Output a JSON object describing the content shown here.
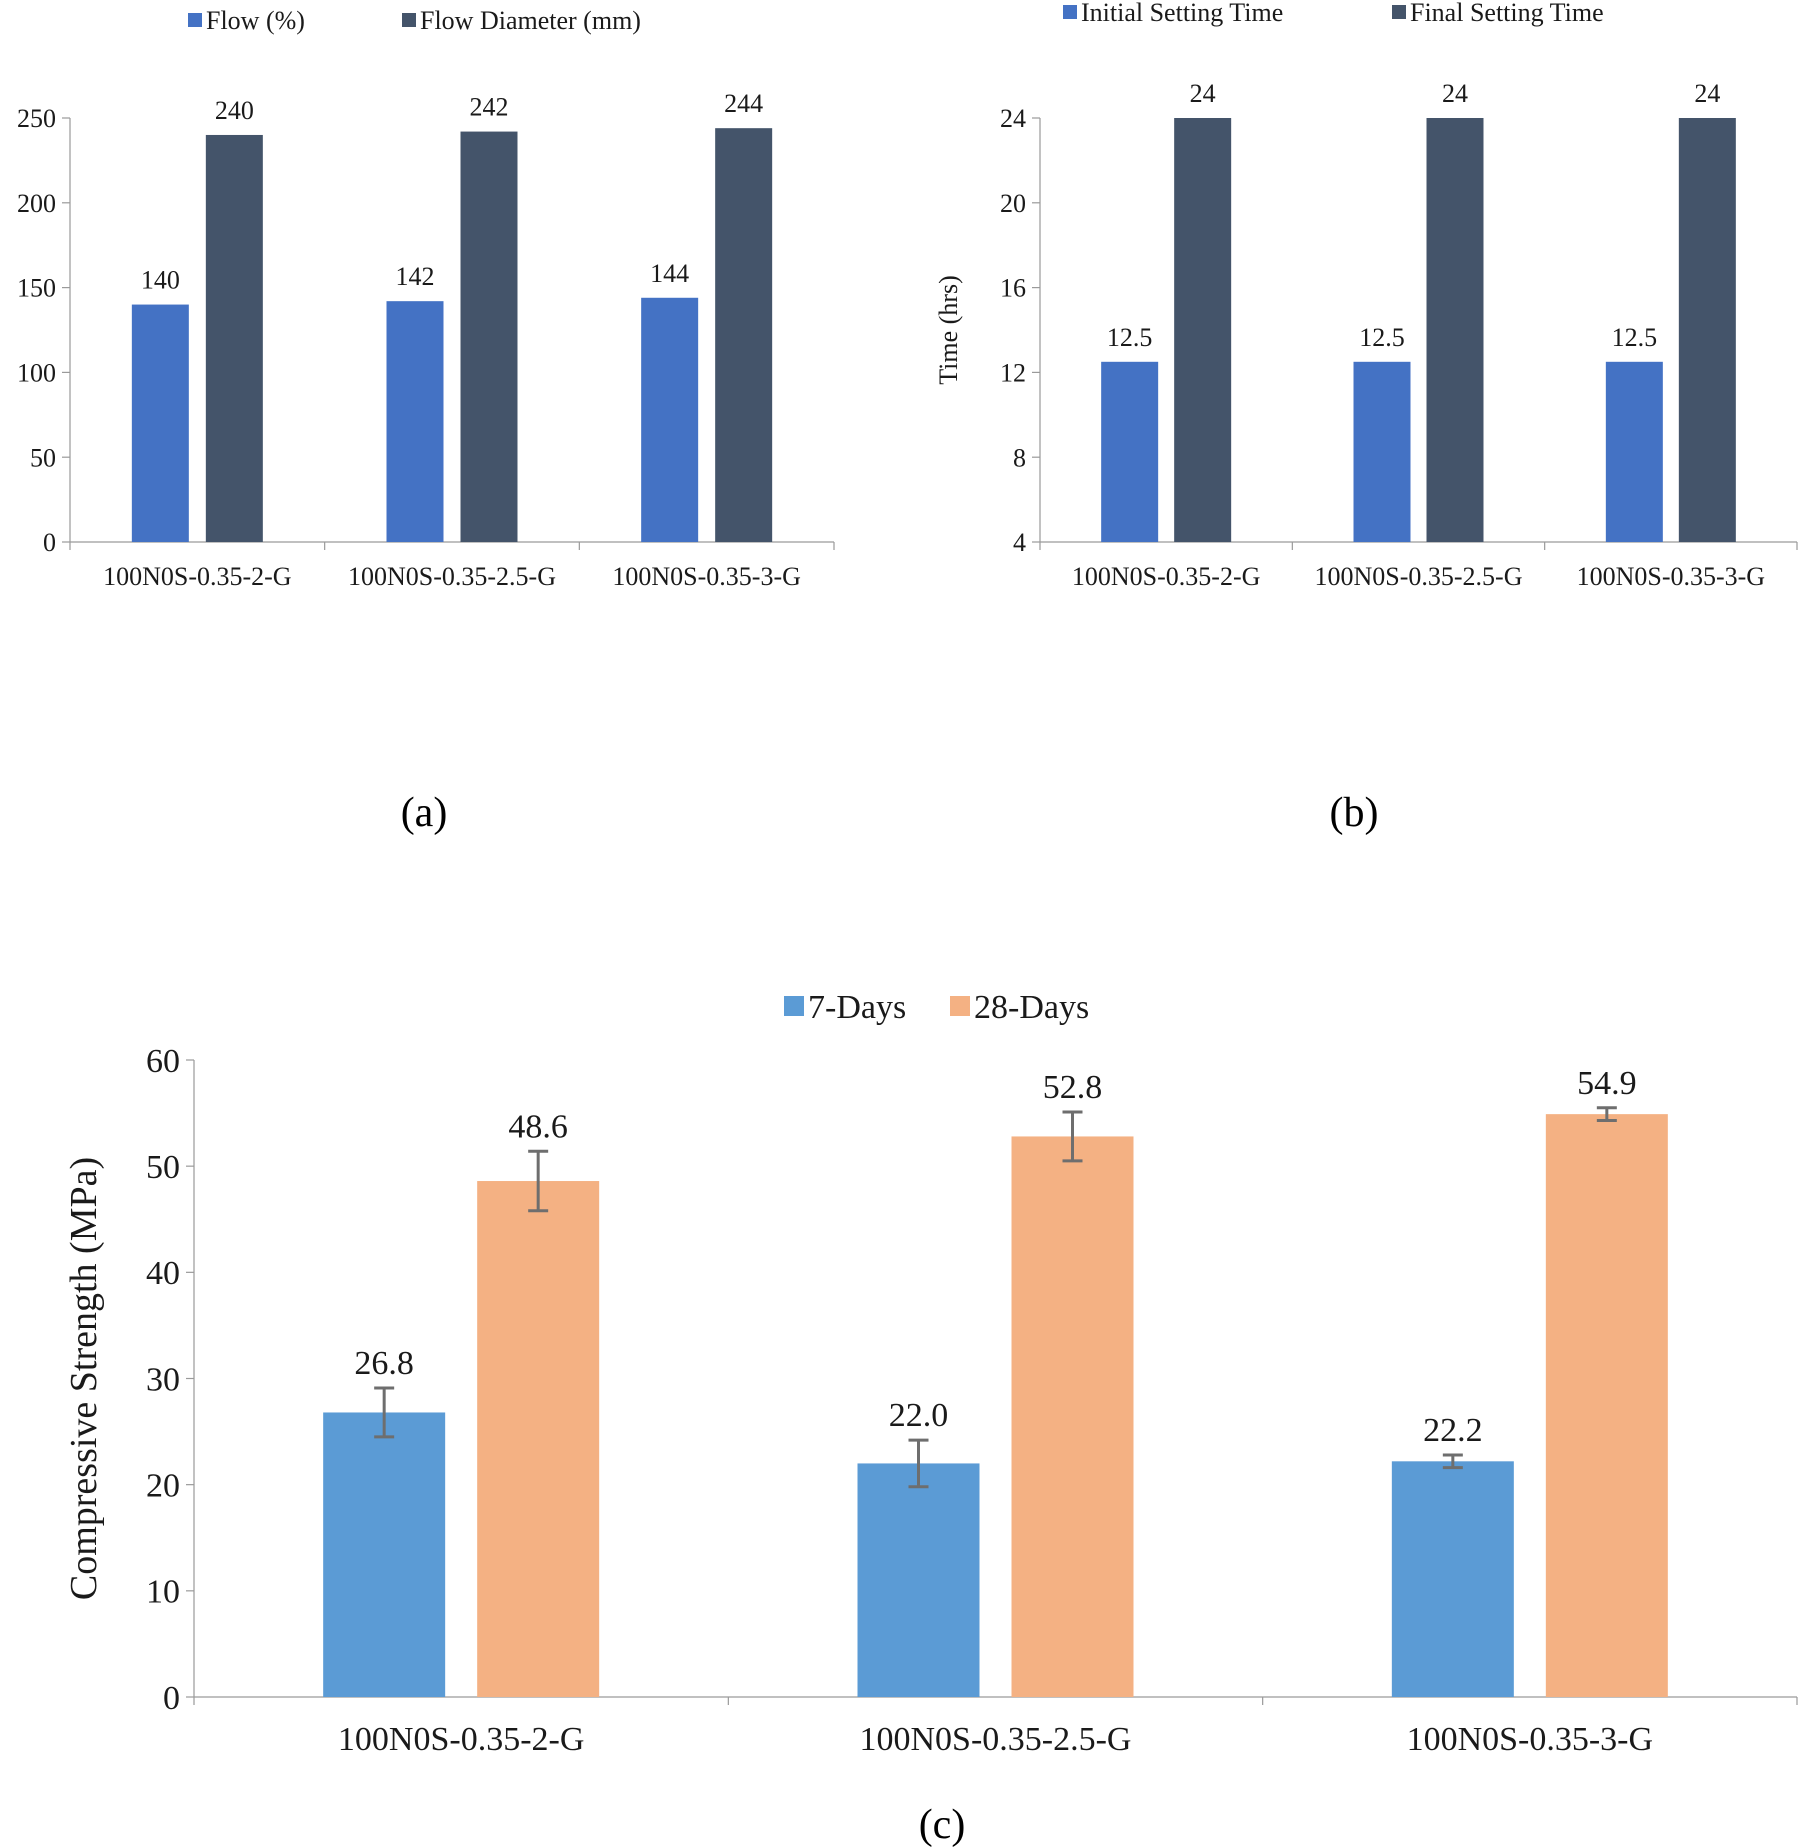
{
  "colors": {
    "flow": "#4472C4",
    "flow_diameter": "#44546A",
    "initial": "#4472C4",
    "final": "#44546A",
    "days7": "#5B9BD5",
    "days28": "#F4B183",
    "error_bar": "#6e6e6e",
    "axis": "#9a9a9a"
  },
  "chart_data": [
    {
      "id": "a",
      "type": "bar",
      "panel_label": "(a)",
      "title": "",
      "xlabel": "",
      "ylabel": "",
      "categories": [
        "100N0S-0.35-2-G",
        "100N0S-0.35-2.5-G",
        "100N0S-0.35-3-G"
      ],
      "series": [
        {
          "name": "Flow (%)",
          "values": [
            140,
            142,
            144
          ],
          "labels": [
            "140",
            "142",
            "144"
          ],
          "color_key": "flow"
        },
        {
          "name": "Flow Diameter (mm)",
          "values": [
            240,
            242,
            244
          ],
          "labels": [
            "240",
            "242",
            "244"
          ],
          "color_key": "flow_diameter"
        }
      ],
      "ylim": [
        0,
        250
      ],
      "yticks": [
        0,
        50,
        100,
        150,
        200,
        250
      ],
      "legend_position": "top",
      "grid": false
    },
    {
      "id": "b",
      "type": "bar",
      "panel_label": "(b)",
      "title": "",
      "xlabel": "",
      "ylabel": "Time (hrs)",
      "categories": [
        "100N0S-0.35-2-G",
        "100N0S-0.35-2.5-G",
        "100N0S-0.35-3-G"
      ],
      "series": [
        {
          "name": "Initial Setting Time",
          "values": [
            12.5,
            12.5,
            12.5
          ],
          "labels": [
            "12.5",
            "12.5",
            "12.5"
          ],
          "color_key": "initial"
        },
        {
          "name": "Final Setting Time",
          "values": [
            24,
            24,
            24
          ],
          "labels": [
            "24",
            "24",
            "24"
          ],
          "color_key": "final"
        }
      ],
      "ylim": [
        4,
        24
      ],
      "yticks": [
        4,
        8,
        12,
        16,
        20,
        24
      ],
      "legend_position": "top",
      "grid": false
    },
    {
      "id": "c",
      "type": "bar",
      "panel_label": "(c)",
      "title": "",
      "xlabel": "",
      "ylabel": "Compressive Strength (MPa)",
      "categories": [
        "100N0S-0.35-2-G",
        "100N0S-0.35-2.5-G",
        "100N0S-0.35-3-G"
      ],
      "series": [
        {
          "name": "7-Days",
          "values": [
            26.8,
            22.0,
            22.2
          ],
          "labels": [
            "26.8",
            "22.0",
            "22.2"
          ],
          "errors": [
            2.3,
            2.2,
            0.6
          ],
          "color_key": "days7"
        },
        {
          "name": "28-Days",
          "values": [
            48.6,
            52.8,
            54.9
          ],
          "labels": [
            "48.6",
            "52.8",
            "54.9"
          ],
          "errors": [
            2.8,
            2.3,
            0.6
          ],
          "color_key": "days28"
        }
      ],
      "ylim": [
        0,
        60
      ],
      "yticks": [
        0,
        10,
        20,
        30,
        40,
        50,
        60
      ],
      "legend_position": "top",
      "grid": false
    }
  ]
}
